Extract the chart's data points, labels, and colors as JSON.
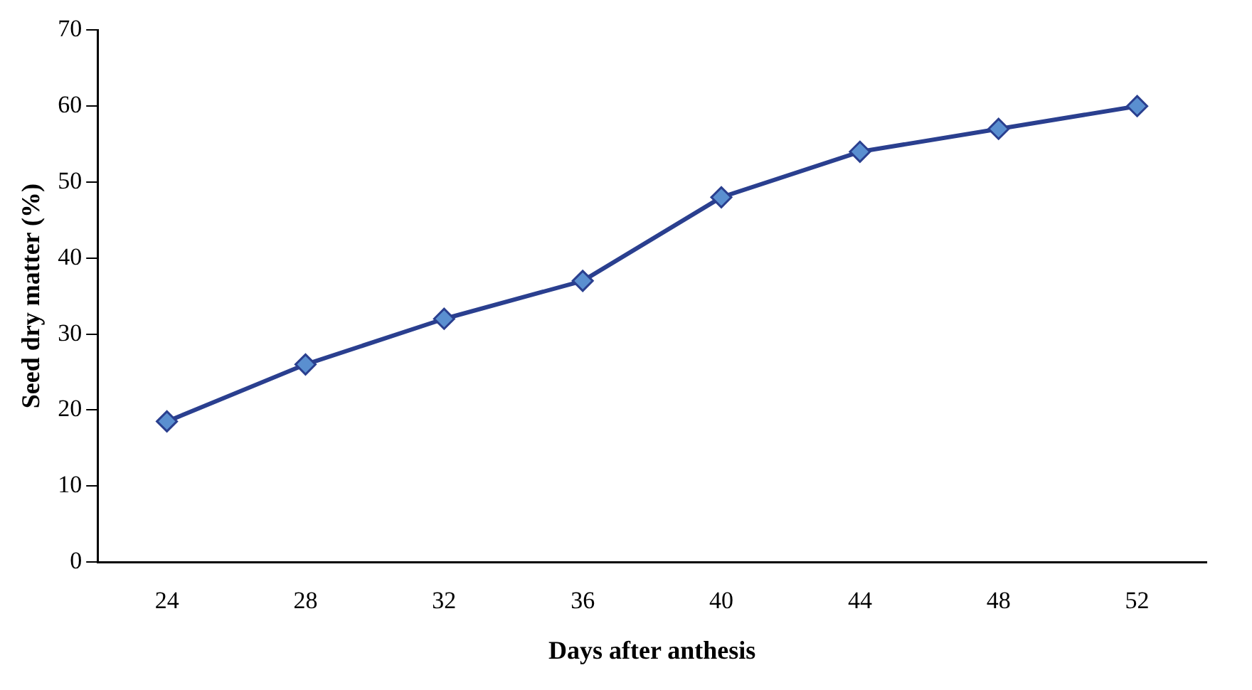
{
  "chart_data": {
    "type": "line",
    "xlabel": "Days after anthesis",
    "ylabel": "Seed dry matter (%)",
    "categories": [
      "24",
      "28",
      "32",
      "36",
      "40",
      "44",
      "48",
      "52"
    ],
    "series": [
      {
        "color": "#2a3f8f",
        "values": [
          18.5,
          26,
          32,
          37,
          48,
          54,
          57,
          60
        ]
      }
    ],
    "ylim": [
      0,
      70
    ],
    "yticks": [
      0,
      10,
      20,
      30,
      40,
      50,
      60,
      70
    ],
    "grid": false,
    "legend": false,
    "marker": "diamond",
    "line_style": "solid"
  }
}
